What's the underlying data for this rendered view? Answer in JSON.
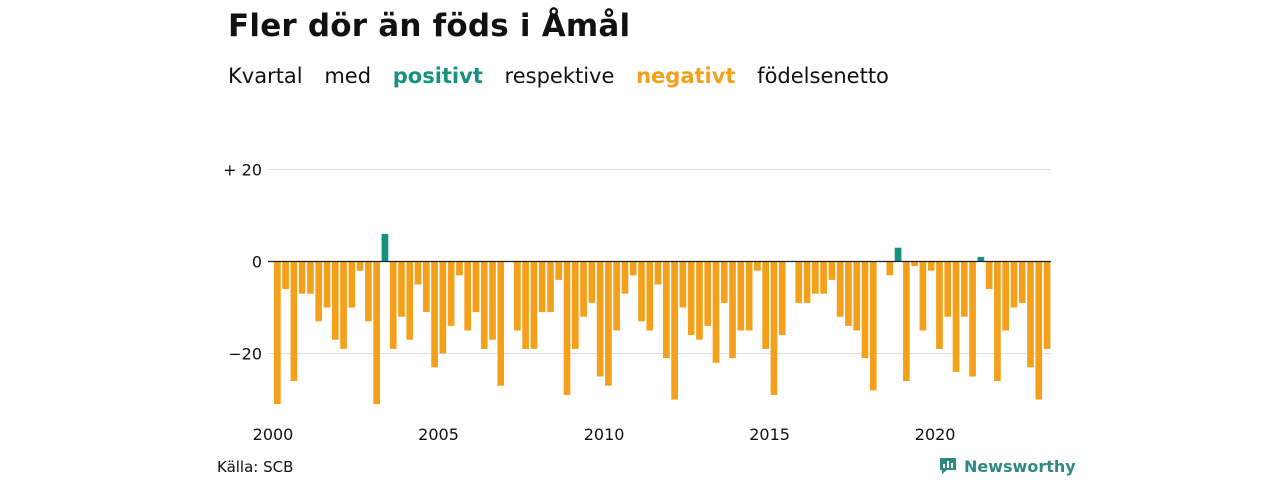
{
  "title": "Fler dör än föds i Åmål",
  "subtitle": {
    "words": [
      "Kvartal",
      "med",
      "positivt",
      "respektive",
      "negativt",
      "födelsenetto"
    ]
  },
  "source": "Källa: SCB",
  "brand": {
    "name": "Newsworthy",
    "icon": "newsworthy-logo-icon",
    "color": "#2c8a7e"
  },
  "colors": {
    "positive": "#17917f",
    "negative": "#f5a01a",
    "grid": "#dddddd",
    "zero": "#222222"
  },
  "chart_data": {
    "type": "bar",
    "title": "Fler dör än föds i Åmål",
    "xlabel": "",
    "ylabel": "",
    "xlim": [
      2000,
      2023.75
    ],
    "ylim": [
      -33,
      21
    ],
    "y_ticks": [
      {
        "value": 20,
        "label": "+ 20"
      },
      {
        "value": 0,
        "label": "0"
      },
      {
        "value": -20,
        "label": "−20"
      }
    ],
    "x_ticks": [
      {
        "value": 2000,
        "label": "2000"
      },
      {
        "value": 2005,
        "label": "2005"
      },
      {
        "value": 2010,
        "label": "2010"
      },
      {
        "value": 2015,
        "label": "2015"
      },
      {
        "value": 2020,
        "label": "2020"
      }
    ],
    "grid": true,
    "quarter_start": "2000 Q1",
    "values": [
      -31,
      -6,
      -26,
      -7,
      -7,
      -13,
      -10,
      -17,
      -19,
      -10,
      -2,
      -13,
      -31,
      6,
      -19,
      -12,
      -17,
      -5,
      -11,
      -23,
      -20,
      -14,
      -3,
      -15,
      -11,
      -19,
      -17,
      -27,
      0,
      -15,
      -19,
      -19,
      -11,
      -11,
      -4,
      -29,
      -19,
      -12,
      -9,
      -25,
      -27,
      -15,
      -7,
      -3,
      -13,
      -15,
      -5,
      -21,
      -30,
      -10,
      -16,
      -17,
      -14,
      -22,
      -9,
      -21,
      -15,
      -15,
      -2,
      -19,
      -29,
      -16,
      0,
      -9,
      -9,
      -7,
      -7,
      -4,
      -12,
      -14,
      -15,
      -21,
      -28,
      0,
      -3,
      3,
      -26,
      -1,
      -15,
      -2,
      -19,
      -12,
      -24,
      -12,
      -25,
      1,
      -6,
      -26,
      -15,
      -10,
      -9,
      -23,
      -30,
      -19
    ]
  }
}
